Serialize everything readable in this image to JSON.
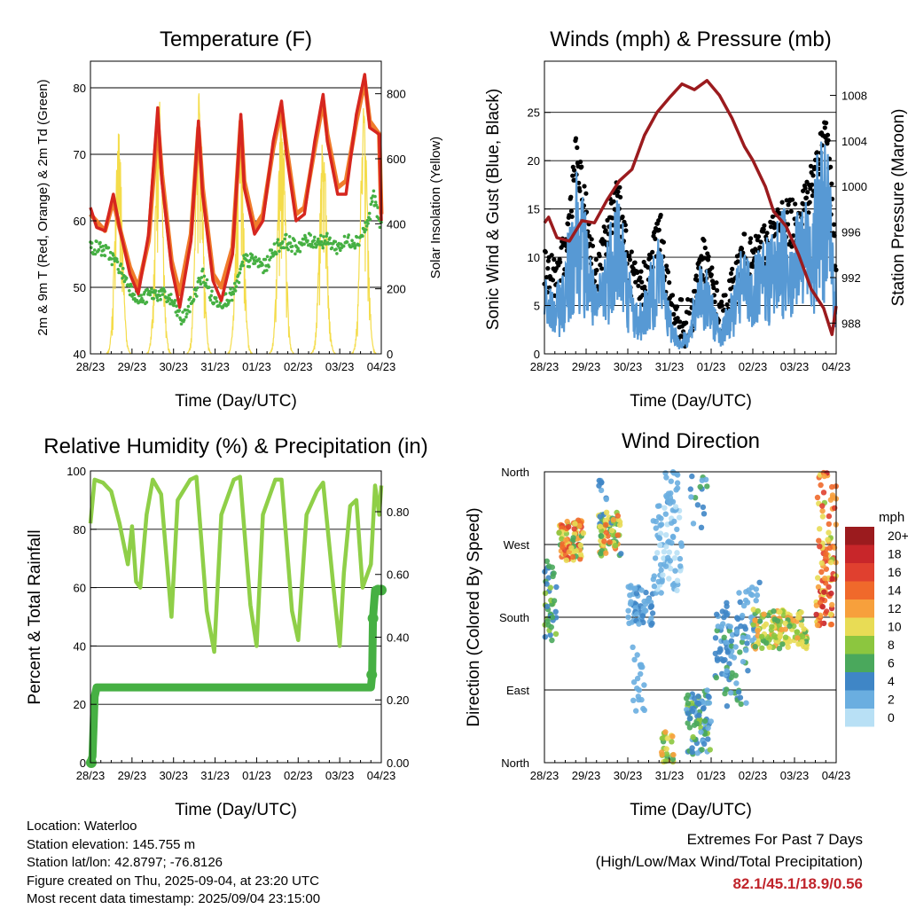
{
  "colors": {
    "temp_2m": "#d6261f",
    "temp_9m": "#f07c2b",
    "dewpoint": "#46b043",
    "solar": "#f4dc4a",
    "wind": "#5799d4",
    "gust": "#000000",
    "pressure": "#9b1b1e",
    "rh": "#8fcf48",
    "precip": "#46b043",
    "extremes_values": "#c0242b"
  },
  "x_ticks": [
    "28/23",
    "29/23",
    "30/23",
    "31/23",
    "01/23",
    "02/23",
    "03/23",
    "04/23"
  ],
  "panels": {
    "temp": {
      "title": "Temperature (F)",
      "xlabel": "Time (Day/UTC)",
      "ylabel_left": "2m & 9m T (Red, Orange) & 2m Td (Green)",
      "ylabel_right": "Solar Insolation (Yellow)",
      "left_ticks": [
        "40",
        "50",
        "60",
        "70",
        "80"
      ],
      "right_ticks": [
        "0",
        "200",
        "400",
        "600",
        "800"
      ]
    },
    "wind": {
      "title": "Winds (mph) & Pressure (mb)",
      "xlabel": "Time (Day/UTC)",
      "ylabel_left": "Sonic Wind & Gust (Blue, Black)",
      "ylabel_right": "Station Pressure (Maroon)",
      "left_ticks": [
        "0",
        "5",
        "10",
        "15",
        "20",
        "25"
      ],
      "right_ticks": [
        "988",
        "992",
        "996",
        "1000",
        "1004",
        "1008"
      ]
    },
    "rh": {
      "title": "Relative Humidity (%) & Precipitation (in)",
      "xlabel": "Time (Day/UTC)",
      "ylabel_left": "Percent & Total Rainfall",
      "left_ticks": [
        "0",
        "20",
        "40",
        "60",
        "80",
        "100"
      ],
      "right_ticks": [
        "0.00",
        "0.20",
        "0.40",
        "0.60",
        "0.80"
      ]
    },
    "dir": {
      "title": "Wind Direction",
      "xlabel": "Time (Day/UTC)",
      "ylabel_left": "Direction (Colored By Speed)",
      "dir_ticks": [
        "North",
        "East",
        "South",
        "West",
        "North"
      ],
      "colorbar_title": "mph",
      "colorbar_labels": [
        "20+",
        "18",
        "16",
        "14",
        "12",
        "10",
        "8",
        "6",
        "4",
        "2",
        "0"
      ],
      "colorbar_colors": [
        "#9b1b1e",
        "#c8262a",
        "#e0402f",
        "#f0692b",
        "#f7a03c",
        "#e8dc55",
        "#8cc63f",
        "#4aa85c",
        "#3f86c6",
        "#6aaee0",
        "#b8e0f5"
      ]
    }
  },
  "info": {
    "location": "Location: Waterloo",
    "elevation": "Station elevation: 145.755 m",
    "latlon": "Station lat/lon: 42.8797; -76.8126",
    "created": "Figure created on Thu, 2025-09-04, at 23:20 UTC",
    "latest": "Most recent data timestamp: 2025/09/04 23:15:00"
  },
  "extremes": {
    "title": "Extremes For Past 7 Days",
    "subtitle": "(High/Low/Max Wind/Total Precipitation)",
    "values": "82.1/45.1/18.9/0.56"
  },
  "chart_data": [
    {
      "type": "line",
      "title": "Temperature (F)",
      "xlabel": "Time (Day/UTC)",
      "ylabel": "2m & 9m T (Red, Orange) & 2m Td (Green)",
      "y2label": "Solar Insolation (Yellow)",
      "x_range_days": [
        0,
        7
      ],
      "ylim": [
        40,
        84
      ],
      "y2lim": [
        0,
        900
      ],
      "series": [
        {
          "name": "2m T",
          "x": [
            0,
            0.15,
            0.35,
            0.55,
            0.7,
            0.95,
            1.15,
            1.4,
            1.62,
            1.72,
            1.95,
            2.15,
            2.42,
            2.6,
            2.7,
            2.95,
            3.15,
            3.42,
            3.62,
            3.7,
            3.95,
            4.15,
            4.4,
            4.6,
            4.72,
            4.95,
            5.15,
            5.4,
            5.6,
            5.7,
            5.95,
            6.15,
            6.4,
            6.6,
            6.72,
            6.95,
            7.0
          ],
          "y": [
            62,
            59,
            58.5,
            64,
            59,
            52,
            49,
            58,
            77,
            66,
            53,
            47,
            57,
            75,
            64,
            51,
            48,
            55,
            76,
            65,
            58,
            60,
            72,
            78,
            70,
            60,
            61,
            72,
            79,
            72,
            64,
            64,
            76,
            82,
            74,
            73,
            60
          ]
        },
        {
          "name": "9m T",
          "x": [
            0,
            0.35,
            0.55,
            0.7,
            0.95,
            1.15,
            1.4,
            1.62,
            1.72,
            1.95,
            2.15,
            2.42,
            2.6,
            2.7,
            2.95,
            3.15,
            3.42,
            3.62,
            3.7,
            3.95,
            4.15,
            4.4,
            4.6,
            4.72,
            4.95,
            5.15,
            5.4,
            5.6,
            5.7,
            5.95,
            6.15,
            6.4,
            6.6,
            6.72,
            6.95,
            7.0
          ],
          "y": [
            61,
            58.5,
            63,
            59,
            53,
            50,
            57,
            75,
            67,
            54,
            49,
            58,
            74,
            65,
            52,
            50,
            56,
            75,
            66,
            59,
            61,
            71,
            77,
            71,
            61,
            62,
            71,
            78,
            73,
            65,
            66,
            75,
            81,
            75,
            73,
            61
          ]
        },
        {
          "name": "2m Td",
          "x": [
            0,
            0.2,
            0.45,
            0.7,
            0.95,
            1.2,
            1.45,
            1.7,
            1.95,
            2.2,
            2.45,
            2.7,
            2.95,
            3.2,
            3.45,
            3.7,
            3.95,
            4.2,
            4.45,
            4.7,
            4.95,
            5.2,
            5.45,
            5.7,
            5.95,
            6.2,
            6.45,
            6.7,
            6.8,
            6.95,
            7.0
          ],
          "y": [
            56,
            56,
            55,
            53,
            50,
            48,
            49,
            49,
            48,
            45,
            48,
            52,
            48,
            48,
            49,
            54,
            54,
            53,
            56,
            57,
            56,
            57,
            57,
            57,
            56,
            57,
            57,
            60,
            64,
            60,
            59
          ]
        },
        {
          "name": "Solar Insolation",
          "axis": "right",
          "peaks_x": [
            0.68,
            1.65,
            2.62,
            3.6,
            4.6,
            5.6,
            6.58
          ],
          "peaks_y": [
            740,
            800,
            830,
            780,
            820,
            700,
            780
          ]
        }
      ]
    },
    {
      "type": "scatter",
      "title": "Winds (mph) & Pressure (mb)",
      "xlabel": "Time (Day/UTC)",
      "ylabel": "Sonic Wind & Gust (Blue, Black)",
      "y2label": "Station Pressure (Maroon)",
      "x_range_days": [
        0,
        7
      ],
      "ylim": [
        0,
        30.3
      ],
      "y2lim": [
        985.3,
        1011.0
      ],
      "series": [
        {
          "name": "Sonic Wind",
          "x": [
            0,
            0.25,
            0.5,
            0.75,
            1.0,
            1.25,
            1.5,
            1.75,
            2.0,
            2.25,
            2.5,
            2.75,
            3.0,
            3.25,
            3.5,
            3.75,
            4.0,
            4.25,
            4.5,
            4.75,
            5.0,
            5.25,
            5.5,
            5.75,
            6.0,
            6.25,
            6.5,
            6.75,
            7.0
          ],
          "y": [
            5,
            4,
            6,
            13,
            9,
            4,
            8,
            12,
            6,
            3,
            5,
            9,
            3,
            1,
            2,
            7,
            4,
            2,
            4,
            7,
            6,
            7,
            8,
            10,
            9,
            10,
            12,
            15,
            5
          ]
        },
        {
          "name": "Gust",
          "x": [
            0,
            0.25,
            0.5,
            0.75,
            1.0,
            1.25,
            1.5,
            1.75,
            2.0,
            2.25,
            2.5,
            2.75,
            3.0,
            3.25,
            3.5,
            3.75,
            4.0,
            4.25,
            4.5,
            4.75,
            5.0,
            5.25,
            5.5,
            5.75,
            6.0,
            6.25,
            6.5,
            6.75,
            7.0
          ],
          "y": [
            9,
            7,
            10,
            20,
            14,
            7,
            12,
            17,
            9,
            6,
            8,
            13,
            5,
            3,
            3,
            10,
            7,
            3,
            6,
            10,
            9,
            11,
            12,
            14,
            13,
            16,
            18,
            24,
            8
          ]
        },
        {
          "name": "Station Pressure",
          "axis": "right",
          "x": [
            0,
            0.1,
            0.3,
            0.6,
            0.9,
            1.2,
            1.5,
            1.8,
            2.1,
            2.4,
            2.7,
            3.0,
            3.3,
            3.6,
            3.9,
            4.2,
            4.5,
            4.8,
            5.0,
            5.3,
            5.5,
            5.8,
            6.1,
            6.4,
            6.7,
            6.9,
            7.0
          ],
          "y": [
            996.8,
            997.3,
            995.5,
            995.2,
            997.0,
            996.8,
            998.8,
            1000.5,
            1001.5,
            1004.5,
            1006.5,
            1007.8,
            1009.0,
            1008.5,
            1009.3,
            1008.0,
            1006.0,
            1003.5,
            1002.3,
            1000.0,
            997.8,
            996.5,
            994.0,
            991.0,
            989.3,
            987.0,
            989.5
          ]
        }
      ]
    },
    {
      "type": "line",
      "title": "Relative Humidity (%) & Precipitation (in)",
      "xlabel": "Time (Day/UTC)",
      "ylabel": "Percent & Total Rainfall",
      "x_range_days": [
        0,
        7
      ],
      "ylim": [
        0,
        100
      ],
      "y2lim": [
        0,
        0.93
      ],
      "series": [
        {
          "name": "Relative Humidity",
          "x": [
            0,
            0.1,
            0.3,
            0.5,
            0.7,
            0.9,
            1.0,
            1.1,
            1.2,
            1.35,
            1.5,
            1.7,
            1.95,
            2.1,
            2.4,
            2.55,
            2.8,
            2.98,
            3.15,
            3.45,
            3.6,
            3.85,
            4.0,
            4.15,
            4.45,
            4.6,
            4.85,
            5.0,
            5.2,
            5.45,
            5.6,
            5.85,
            6.0,
            6.1,
            6.25,
            6.4,
            6.55,
            6.75,
            6.85,
            6.95,
            7.0
          ],
          "y": [
            82,
            97,
            96,
            93,
            82,
            68,
            81,
            62,
            60,
            85,
            97,
            92,
            50,
            90,
            97,
            98,
            52,
            38,
            85,
            97,
            98,
            54,
            40,
            85,
            97,
            97,
            52,
            42,
            85,
            93,
            96,
            60,
            40,
            65,
            88,
            90,
            60,
            68,
            95,
            85,
            95
          ]
        },
        {
          "name": "Total Precipitation",
          "axis": "right",
          "x": [
            0,
            0.05,
            0.1,
            0.15,
            0.2,
            6.75,
            6.78,
            6.8,
            6.85,
            6.95,
            7.0
          ],
          "y": [
            0,
            0.02,
            0.21,
            0.24,
            0.24,
            0.24,
            0.28,
            0.46,
            0.55,
            0.55,
            0.55
          ]
        }
      ]
    },
    {
      "type": "scatter",
      "title": "Wind Direction",
      "xlabel": "Time (Day/UTC)",
      "ylabel": "Direction (Colored By Speed)",
      "ylim": [
        "North",
        "East",
        "South",
        "West",
        "North"
      ],
      "x_range_days": [
        0,
        7
      ],
      "colorbar": {
        "title": "mph",
        "labels": [
          "0",
          "2",
          "4",
          "6",
          "8",
          "10",
          "12",
          "14",
          "16",
          "18",
          "20+"
        ]
      },
      "clusters": [
        {
          "x": [
            0.0,
            0.3
          ],
          "direction": "South-West",
          "speed": [
            4,
            8
          ]
        },
        {
          "x": [
            0.35,
            0.95
          ],
          "direction": "West-NorthWest",
          "speed": [
            8,
            16
          ]
        },
        {
          "x": [
            1.3,
            1.8
          ],
          "direction": "West",
          "speed": [
            6,
            14
          ]
        },
        {
          "x": [
            2.0,
            2.6
          ],
          "direction": "South-West",
          "speed": [
            2,
            4
          ]
        },
        {
          "x": [
            2.7,
            3.3
          ],
          "direction": "North and West",
          "speed": [
            0,
            4
          ]
        },
        {
          "x": [
            3.4,
            4.0
          ],
          "direction": "East-North",
          "speed": [
            4,
            10
          ]
        },
        {
          "x": [
            4.2,
            5.0
          ],
          "direction": "South-East",
          "speed": [
            2,
            6
          ]
        },
        {
          "x": [
            5.0,
            6.3
          ],
          "direction": "South",
          "speed": [
            6,
            12
          ]
        },
        {
          "x": [
            6.5,
            7.0
          ],
          "direction": "South-West to North",
          "speed": [
            8,
            18
          ]
        }
      ]
    }
  ]
}
